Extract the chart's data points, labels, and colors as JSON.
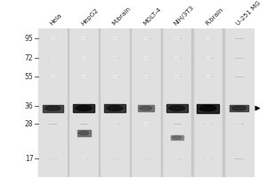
{
  "lanes": [
    "Hela",
    "HepG2",
    "M.brain",
    "MOLT-4",
    "NIH/3T3",
    "R.brain",
    "U-251 MG"
  ],
  "mw_markers": [
    95,
    72,
    55,
    36,
    28,
    17
  ],
  "bg_color": "#ffffff",
  "lane_bg": "#e0e0e0",
  "gap_bg": "#c8c8c8",
  "bands": [
    {
      "lane": 0,
      "mw": 35,
      "intensity": 0.82,
      "bw": 0.7,
      "bh": 0.048
    },
    {
      "lane": 1,
      "mw": 35,
      "intensity": 0.95,
      "bw": 0.72,
      "bh": 0.052
    },
    {
      "lane": 1,
      "mw": 24.5,
      "intensity": 0.6,
      "bw": 0.45,
      "bh": 0.038
    },
    {
      "lane": 2,
      "mw": 35,
      "intensity": 0.9,
      "bw": 0.72,
      "bh": 0.052
    },
    {
      "lane": 3,
      "mw": 35,
      "intensity": 0.6,
      "bw": 0.55,
      "bh": 0.04
    },
    {
      "lane": 4,
      "mw": 35,
      "intensity": 0.9,
      "bw": 0.72,
      "bh": 0.05
    },
    {
      "lane": 4,
      "mw": 23,
      "intensity": 0.5,
      "bw": 0.42,
      "bh": 0.035
    },
    {
      "lane": 5,
      "mw": 35,
      "intensity": 0.97,
      "bw": 0.75,
      "bh": 0.06
    },
    {
      "lane": 6,
      "mw": 35,
      "intensity": 0.78,
      "bw": 0.65,
      "bh": 0.045
    }
  ],
  "faint_dots": [
    {
      "lane": 0,
      "mw": 72,
      "intensity": 0.1
    },
    {
      "lane": 1,
      "mw": 72,
      "intensity": 0.08
    },
    {
      "lane": 2,
      "mw": 72,
      "intensity": 0.1
    },
    {
      "lane": 3,
      "mw": 72,
      "intensity": 0.08
    },
    {
      "lane": 4,
      "mw": 72,
      "intensity": 0.08
    },
    {
      "lane": 5,
      "mw": 72,
      "intensity": 0.08
    },
    {
      "lane": 0,
      "mw": 55,
      "intensity": 0.08
    },
    {
      "lane": 1,
      "mw": 55,
      "intensity": 0.08
    },
    {
      "lane": 2,
      "mw": 55,
      "intensity": 0.08
    },
    {
      "lane": 3,
      "mw": 55,
      "intensity": 0.08
    },
    {
      "lane": 4,
      "mw": 55,
      "intensity": 0.08
    },
    {
      "lane": 5,
      "mw": 55,
      "intensity": 0.08
    },
    {
      "lane": 0,
      "mw": 17,
      "intensity": 0.12
    },
    {
      "lane": 1,
      "mw": 17,
      "intensity": 0.1
    },
    {
      "lane": 2,
      "mw": 17,
      "intensity": 0.12
    },
    {
      "lane": 3,
      "mw": 17,
      "intensity": 0.12
    },
    {
      "lane": 4,
      "mw": 17,
      "intensity": 0.1
    },
    {
      "lane": 5,
      "mw": 17,
      "intensity": 0.1
    },
    {
      "lane": 2,
      "mw": 28,
      "intensity": 0.1
    },
    {
      "lane": 3,
      "mw": 28,
      "intensity": 0.08
    },
    {
      "lane": 5,
      "mw": 28,
      "intensity": 0.1
    },
    {
      "lane": 6,
      "mw": 28,
      "intensity": 0.12
    },
    {
      "lane": 4,
      "mw": 95,
      "intensity": 0.08
    },
    {
      "lane": 0,
      "mw": 95,
      "intensity": 0.08
    },
    {
      "lane": 1,
      "mw": 95,
      "intensity": 0.08
    },
    {
      "lane": 2,
      "mw": 95,
      "intensity": 0.08
    },
    {
      "lane": 3,
      "mw": 95,
      "intensity": 0.08
    },
    {
      "lane": 5,
      "mw": 95,
      "intensity": 0.08
    }
  ],
  "arrow_lane": 6,
  "arrow_mw": 35,
  "label_fontsize": 5.2,
  "marker_fontsize": 5.5
}
